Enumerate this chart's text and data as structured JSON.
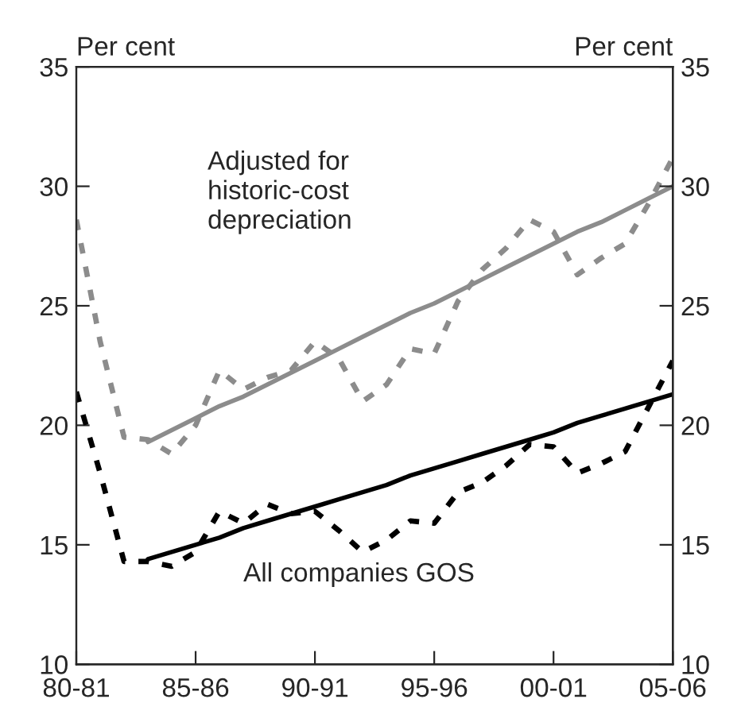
{
  "chart_data": {
    "type": "line",
    "ylabel": "Per cent",
    "y2label": "Per cent",
    "categories": [
      "80-81",
      null,
      null,
      null,
      null,
      "85-86",
      null,
      null,
      null,
      null,
      "90-91",
      null,
      null,
      null,
      null,
      "95-96",
      null,
      null,
      null,
      null,
      "00-01",
      null,
      null,
      null,
      null,
      "05-06"
    ],
    "ylim": [
      10,
      35
    ],
    "yticks": [
      10,
      15,
      20,
      25,
      30,
      35
    ],
    "y2lim": [
      10,
      35
    ],
    "y2ticks": [
      10,
      15,
      20,
      25,
      30,
      35
    ],
    "grid": false,
    "legend": false,
    "annotations": [
      "Adjusted for\nhistoric-cost\ndepreciation",
      "All companies GOS"
    ],
    "series": [
      {
        "color": "#8c8c8c",
        "line_style": "dashed",
        "values": [
          28.6,
          23.5,
          19.5,
          19.4,
          18.8,
          20.0,
          22.3,
          21.5,
          22.0,
          22.3,
          23.5,
          22.8,
          21.0,
          21.7,
          23.2,
          23.0,
          25.2,
          26.5,
          27.4,
          28.6,
          28.1,
          26.3,
          27.0,
          27.6,
          29.3,
          31.2
        ]
      },
      {
        "color": "#8c8c8c",
        "line_style": "solid",
        "values": [
          null,
          null,
          null,
          19.3,
          19.8,
          20.3,
          20.8,
          21.2,
          21.7,
          22.2,
          22.7,
          23.2,
          23.7,
          24.2,
          24.7,
          25.1,
          25.6,
          26.1,
          26.6,
          27.1,
          27.6,
          28.1,
          28.5,
          29.0,
          29.5,
          30.0
        ]
      },
      {
        "color": "#000000",
        "line_style": "dashed",
        "values": [
          21.4,
          18.0,
          14.3,
          14.3,
          14.1,
          14.7,
          16.4,
          15.9,
          16.7,
          16.3,
          16.4,
          15.6,
          14.7,
          15.2,
          16.0,
          15.9,
          17.2,
          17.6,
          18.3,
          19.2,
          19.1,
          18.0,
          18.4,
          18.9,
          20.8,
          22.7
        ]
      },
      {
        "color": "#000000",
        "line_style": "solid",
        "values": [
          null,
          null,
          null,
          14.4,
          14.7,
          15.0,
          15.3,
          15.7,
          16.0,
          16.3,
          16.6,
          16.9,
          17.2,
          17.5,
          17.9,
          18.2,
          18.5,
          18.8,
          19.1,
          19.4,
          19.7,
          20.1,
          20.4,
          20.7,
          21.0,
          21.3
        ]
      }
    ]
  }
}
